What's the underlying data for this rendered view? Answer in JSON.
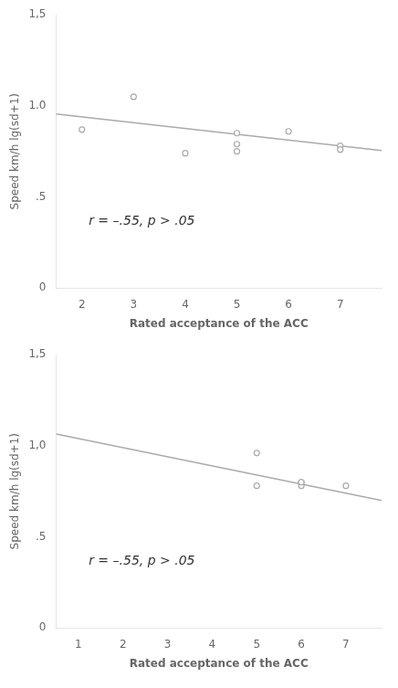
{
  "chart_data": [
    {
      "type": "scatter",
      "x_label": "Rated acceptance of the ACC",
      "y_label": "Speed km/h lg(sd+1)",
      "annotation": "r = –.55, p > .05",
      "series": [
        {
          "type": "scatter",
          "color": "#aaaaaa",
          "marker": "circle",
          "x": [
            2.0,
            3.0,
            4.0,
            5.0,
            5.0,
            5.0,
            6.0,
            7.0,
            7.0
          ],
          "values": [
            0.87,
            1.05,
            0.74,
            0.85,
            0.79,
            0.75,
            0.86,
            0.78,
            0.76
          ]
        },
        {
          "type": "line",
          "color": "#aaaaaa",
          "line_style": "solid",
          "x": [
            1.5,
            7.8
          ],
          "values": [
            0.955,
            0.755
          ]
        }
      ],
      "xlim": [
        1.5,
        7.8
      ],
      "ylim": [
        0,
        1.5
      ],
      "xticks": [
        2,
        3,
        4,
        5,
        6,
        7
      ],
      "yticks": [
        0,
        {
          "value": 0.5,
          "label": ".5"
        },
        {
          "value": 1.0,
          "label": "1.0"
        },
        {
          "value": 1.5,
          "label": "1,5"
        }
      ],
      "grid": false
    },
    {
      "type": "scatter",
      "x_label": "Rated acceptance of the ACC",
      "y_label": "Speed km/h lg(sd+1)",
      "annotation": "r = –.55, p > .05",
      "series": [
        {
          "type": "scatter",
          "color": "#aaaaaa",
          "marker": "circle",
          "x": [
            5.0,
            5.0,
            6.0,
            6.0,
            6.0,
            7.0
          ],
          "values": [
            0.96,
            0.78,
            0.8,
            0.78,
            0.8,
            0.78
          ]
        },
        {
          "type": "line",
          "color": "#aaaaaa",
          "line_style": "solid",
          "x": [
            0.5,
            7.8
          ],
          "values": [
            1.065,
            0.7
          ]
        }
      ],
      "xlim": [
        0.5,
        7.8
      ],
      "ylim": [
        0,
        1.5
      ],
      "xticks": [
        1,
        2,
        3,
        4,
        5,
        6,
        7
      ],
      "yticks": [
        0,
        {
          "value": 0.5,
          "label": ".5"
        },
        {
          "value": 1.0,
          "label": "1,0"
        },
        {
          "value": 1.5,
          "label": "1,5"
        }
      ],
      "grid": false
    }
  ]
}
